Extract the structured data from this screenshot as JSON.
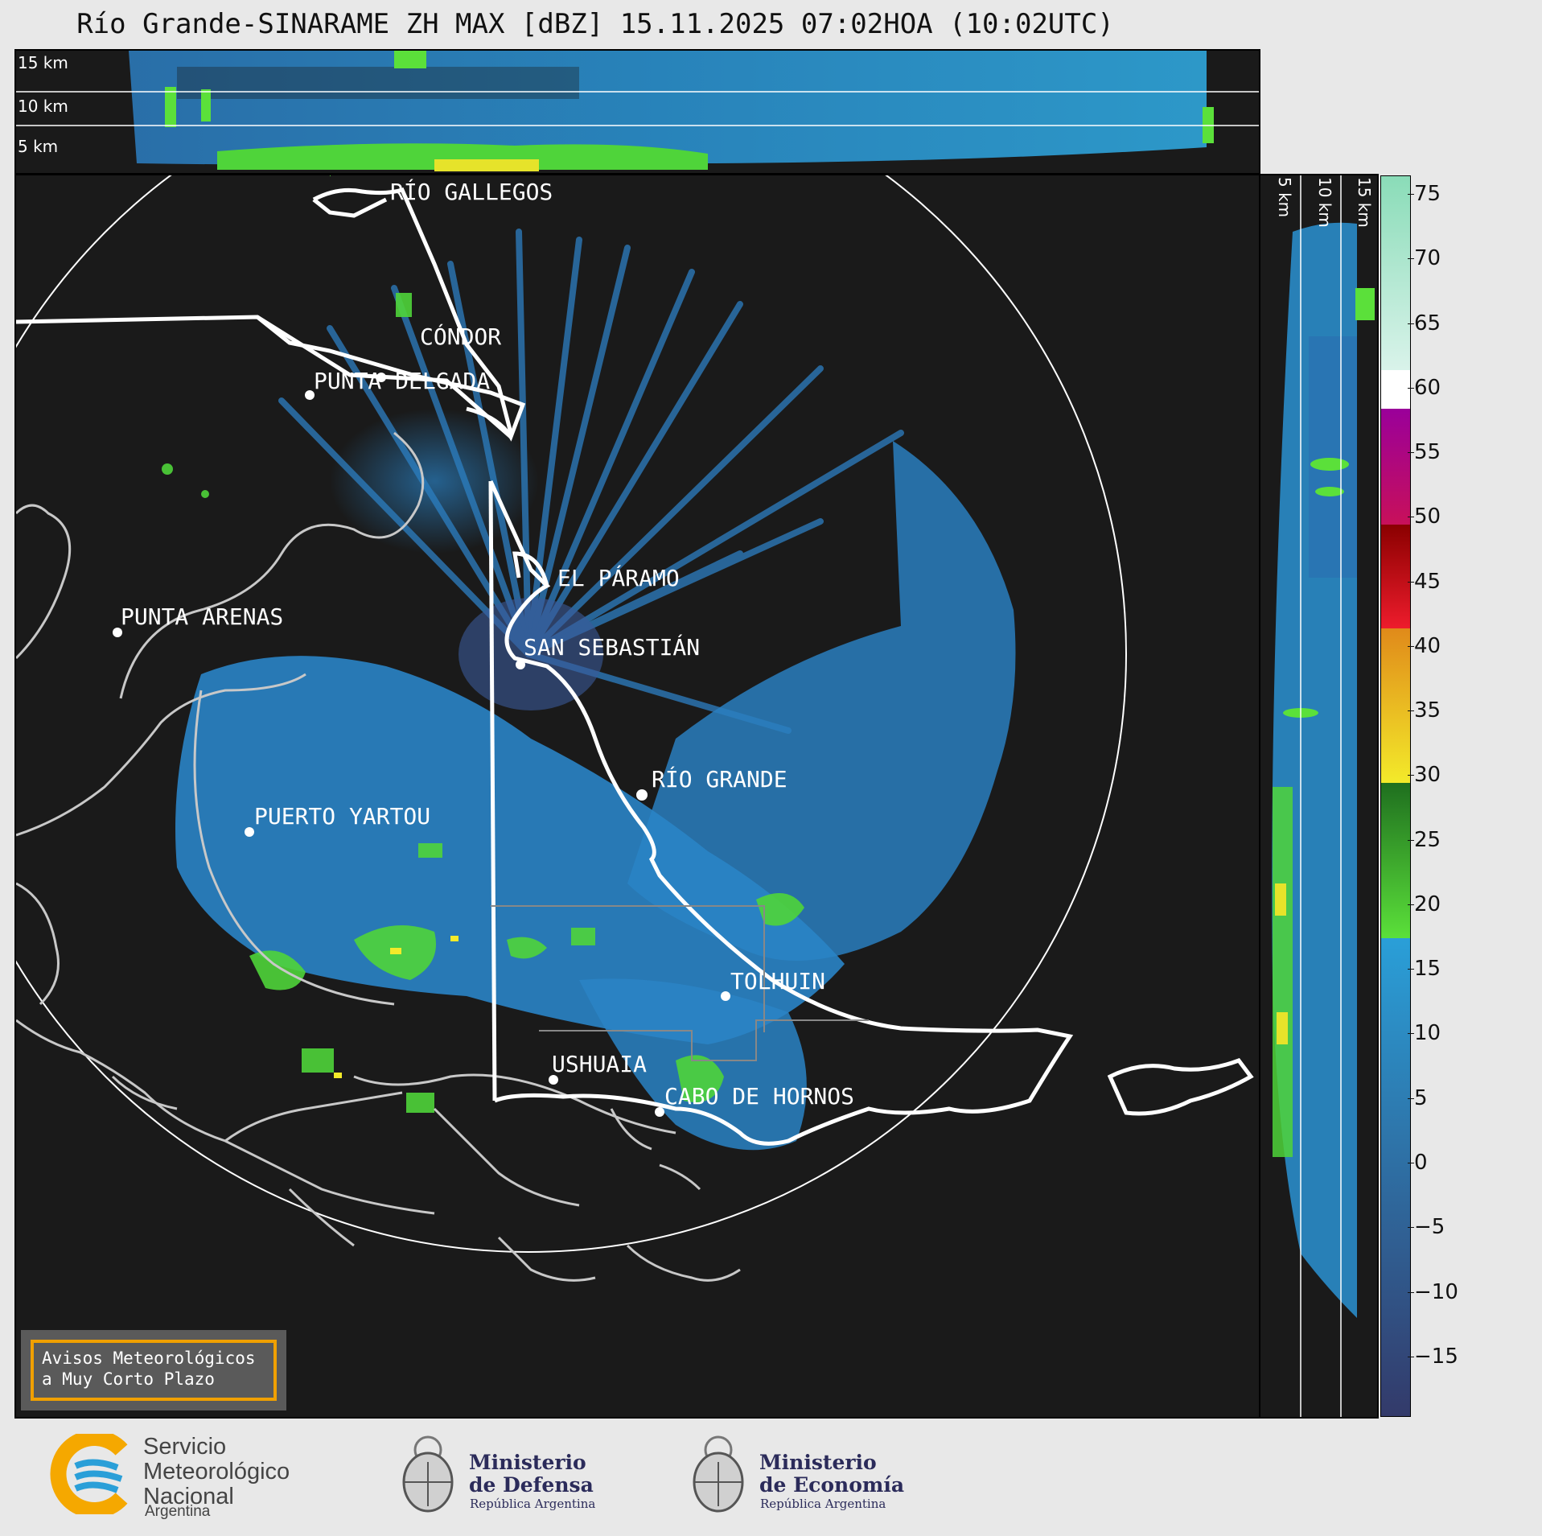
{
  "title": "Río Grande-SINARAME ZH MAX [dBZ] 15.11.2025 07:02HOA (10:02UTC)",
  "top_panel": {
    "altitude_labels": [
      "15 km",
      "10 km",
      "5 km"
    ]
  },
  "side_panel": {
    "altitude_labels": [
      "5 km",
      "10 km",
      "15 km"
    ]
  },
  "map": {
    "cities": [
      {
        "name": "RÍO GALLEGOS",
        "marker": false
      },
      {
        "name": "CÓNDOR",
        "marker": true
      },
      {
        "name": "PUNTA DELGADA",
        "marker": true
      },
      {
        "name": "EL PÁRAMO",
        "marker": false
      },
      {
        "name": "SAN SEBASTIÁN",
        "marker": true
      },
      {
        "name": "PUNTA ARENAS",
        "marker": true
      },
      {
        "name": "RÍO GRANDE",
        "marker": true
      },
      {
        "name": "PUERTO YARTOU",
        "marker": true
      },
      {
        "name": "TOLHUIN",
        "marker": true
      },
      {
        "name": "USHUAIA",
        "marker": true
      },
      {
        "name": "CABO DE HORNOS",
        "marker": true
      }
    ]
  },
  "colorbar": {
    "unit": "dBZ",
    "ticks": [
      "75",
      "70",
      "65",
      "60",
      "55",
      "50",
      "45",
      "40",
      "35",
      "30",
      "25",
      "20",
      "15",
      "10",
      "5",
      "0",
      "−5",
      "−10",
      "−15"
    ],
    "range": [
      -19.5,
      76.5
    ],
    "bands": [
      {
        "from": -19.5,
        "to": 17.5,
        "color_top": "#2a9fd8",
        "color_bottom": "#333a6a"
      },
      {
        "from": 17.5,
        "to": 29.5,
        "color_top": "#1f6f1f",
        "color_bottom": "#5be03a"
      },
      {
        "from": 29.5,
        "to": 41.5,
        "color_top": "#e08a1a",
        "color_bottom": "#f3ea2a"
      },
      {
        "from": 41.5,
        "to": 49.5,
        "color_top": "#8a0000",
        "color_bottom": "#ee1c2c"
      },
      {
        "from": 49.5,
        "to": 58.5,
        "color_top": "#9a009a",
        "color_bottom": "#c8105a"
      },
      {
        "from": 58.5,
        "to": 61.5,
        "color_top": "#ffffff",
        "color_bottom": "#ffffff"
      },
      {
        "from": 61.5,
        "to": 76.5,
        "color_top": "#8adcb8",
        "color_bottom": "#d9f3ea"
      }
    ]
  },
  "legend_box": {
    "line1": "Avisos Meteorológicos",
    "line2": "a Muy Corto Plazo"
  },
  "logos": {
    "smn": {
      "line1": "Servicio",
      "line2": "Meteorológico",
      "line3": "Nacional",
      "sub": "Argentina"
    },
    "defensa": {
      "line1": "Ministerio",
      "line2": "de Defensa",
      "sub": "República Argentina"
    },
    "economia": {
      "line1": "Ministerio",
      "line2": "de Economía",
      "sub": "República Argentina"
    }
  }
}
